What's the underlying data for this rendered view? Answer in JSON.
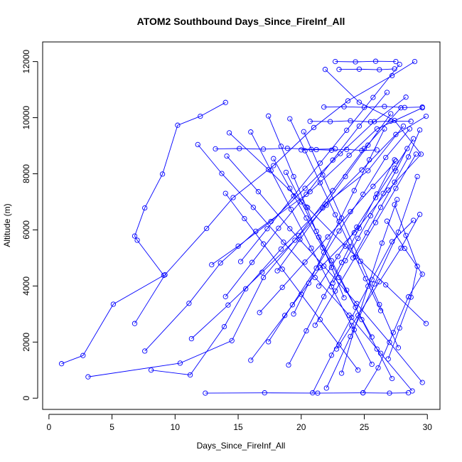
{
  "chart_data": {
    "type": "line",
    "title": "ATOM2 Southbound Days_Since_FireInf_All",
    "xlabel": "Days_Since_FireInf_All",
    "ylabel": "Altitude (m)",
    "xlim": [
      -0.5,
      31
    ],
    "ylim": [
      -400,
      12700
    ],
    "xticks": [
      0,
      5,
      10,
      15,
      20,
      25,
      30
    ],
    "yticks": [
      0,
      2000,
      4000,
      6000,
      8000,
      10000,
      12000
    ],
    "grid": false,
    "legend": "none",
    "marker": "open-circle",
    "series_color": "#0000ff",
    "series": [
      {
        "x": [
          12.4,
          17.1,
          21.3,
          24.9,
          27.0,
          28.5
        ],
        "y": [
          180,
          190,
          180,
          190,
          180,
          190
        ]
      },
      {
        "x": [
          1.0,
          2.7,
          5.1,
          9.1,
          7.0,
          6.8,
          7.6,
          9.0,
          10.2,
          12.0,
          14.0
        ],
        "y": [
          1230,
          1520,
          3350,
          4380,
          5630,
          5780,
          6780,
          7990,
          9730,
          10050,
          10540
        ]
      },
      {
        "x": [
          3.1,
          10.4,
          14.5,
          17.0,
          19.8,
          22.5,
          25.0,
          27.9
        ],
        "y": [
          760,
          1250,
          2050,
          4300,
          5800,
          7400,
          8900,
          10350
        ]
      },
      {
        "x": [
          7.6,
          11.1,
          13.6,
          16.4,
          20.7,
          23.8,
          26.0,
          29.6
        ],
        "y": [
          1680,
          3380,
          4820,
          5950,
          7360,
          8660,
          9600,
          10350
        ]
      },
      {
        "x": [
          8.1,
          11.2,
          13.9,
          15.6,
          18.4,
          21.9,
          25.3,
          28.1
        ],
        "y": [
          1000,
          830,
          2550,
          3900,
          5320,
          6920,
          8110,
          9700
        ]
      },
      {
        "x": [
          6.8,
          9.2,
          12.5,
          14.6,
          17.8,
          21.0,
          23.7,
          27.2,
          29.0
        ],
        "y": [
          2660,
          4400,
          6050,
          7150,
          8290,
          9650,
          10600,
          11500,
          12000
        ]
      },
      {
        "x": [
          16.0,
          18.7,
          21.5,
          24.2,
          26.9,
          29.5,
          27.4,
          24.6,
          21.9
        ],
        "y": [
          1350,
          2950,
          4650,
          5900,
          7420,
          8700,
          9900,
          10550,
          11720
        ]
      },
      {
        "x": [
          12.9,
          15.0,
          17.6,
          20.3,
          23.1,
          25.8,
          28.3
        ],
        "y": [
          4760,
          5420,
          6300,
          7480,
          8720,
          9860,
          10730
        ]
      },
      {
        "x": [
          11.3,
          14.2,
          16.9,
          19.5,
          22.0,
          24.8,
          27.5,
          29.9
        ],
        "y": [
          2120,
          3320,
          4490,
          5630,
          6880,
          8140,
          9400,
          10050
        ]
      },
      {
        "x": [
          28.8,
          26.3,
          23.8,
          21.1,
          18.6,
          16.2,
          13.7,
          11.8
        ],
        "y": [
          260,
          1600,
          2960,
          4300,
          5560,
          6800,
          8010,
          9040
        ]
      },
      {
        "x": [
          29.6,
          27.0,
          24.4,
          21.8,
          19.1,
          16.6,
          14.1
        ],
        "y": [
          560,
          1990,
          3370,
          4710,
          6040,
          7360,
          8630
        ]
      },
      {
        "x": [
          29.9,
          26.7,
          23.5,
          20.5,
          17.4,
          14.3
        ],
        "y": [
          2660,
          4040,
          5420,
          6790,
          8150,
          9460
        ]
      },
      {
        "x": [
          22.0,
          23.9,
          25.8,
          27.7,
          29.2
        ],
        "y": [
          360,
          2200,
          4070,
          5920,
          7900
        ]
      },
      {
        "x": [
          24.9,
          26.1,
          27.3,
          28.5,
          29.6,
          28.2,
          26.8
        ],
        "y": [
          190,
          1080,
          2340,
          3610,
          4420,
          5340,
          6310
        ]
      },
      {
        "x": [
          20.9,
          22.4,
          24.0,
          25.6,
          27.2,
          28.9
        ],
        "y": [
          190,
          1530,
          2880,
          4230,
          5580,
          6340
        ]
      },
      {
        "x": [
          23.2,
          24.2,
          25.3,
          26.4,
          27.6
        ],
        "y": [
          890,
          2440,
          3990,
          5530,
          7080
        ]
      },
      {
        "x": [
          17.4,
          19.3,
          21.2,
          23.0,
          24.9,
          26.7,
          28.6
        ],
        "y": [
          2010,
          3330,
          4640,
          5960,
          7270,
          8580,
          9600
        ]
      },
      {
        "x": [
          14.0,
          16.1,
          18.2,
          20.4,
          22.5,
          24.6,
          26.8
        ],
        "y": [
          3620,
          4840,
          6060,
          7270,
          8490,
          9700,
          10900
        ]
      },
      {
        "x": [
          19.4,
          20.6,
          21.8,
          23.0,
          24.2,
          25.4,
          26.6
        ],
        "y": [
          3000,
          4100,
          5200,
          6300,
          7400,
          8500,
          9600
        ]
      },
      {
        "x": [
          26.3,
          25.1,
          23.9,
          22.7,
          21.5,
          20.3,
          19.1
        ],
        "y": [
          3120,
          4260,
          5400,
          6540,
          7680,
          8820,
          9960
        ]
      },
      {
        "x": [
          27.7,
          26.2,
          24.7,
          23.2,
          21.7,
          20.2
        ],
        "y": [
          1800,
          3340,
          4880,
          6420,
          7960,
          9500
        ]
      },
      {
        "x": [
          21.1,
          22.7,
          24.3,
          25.9,
          27.5,
          29.1
        ],
        "y": [
          2600,
          3820,
          5040,
          6260,
          7480,
          8700
        ]
      },
      {
        "x": [
          25.6,
          24.0,
          22.4,
          20.8,
          19.2,
          17.6,
          16.0
        ],
        "y": [
          1210,
          2590,
          3970,
          5350,
          6730,
          8110,
          9490
        ]
      },
      {
        "x": [
          22.5,
          23.5,
          24.5,
          25.5,
          26.5,
          27.5,
          28.4
        ],
        "y": [
          4100,
          4900,
          5700,
          6500,
          7300,
          8100,
          8900
        ]
      },
      {
        "x": [
          18.1,
          19.9,
          21.7,
          23.5,
          25.3,
          27.1
        ],
        "y": [
          4540,
          5660,
          6780,
          7900,
          9020,
          10140
        ]
      },
      {
        "x": [
          15.2,
          17.3,
          19.4,
          21.5,
          23.6,
          25.7,
          27.8
        ],
        "y": [
          4870,
          6040,
          7210,
          8380,
          9550,
          10720,
          11900
        ]
      },
      {
        "x": [
          20.0,
          21.2,
          22.4,
          23.6,
          24.8,
          26.0
        ],
        "y": [
          8850,
          8860,
          8840,
          8870,
          8830,
          8850
        ]
      },
      {
        "x": [
          13.2,
          15.1,
          17.0,
          18.9,
          20.8,
          22.7
        ],
        "y": [
          8890,
          8900,
          8880,
          8910,
          8870,
          8890
        ]
      },
      {
        "x": [
          20.7,
          22.3,
          23.9,
          25.5,
          27.1,
          28.7
        ],
        "y": [
          9870,
          9860,
          9890,
          9850,
          9880,
          9870
        ]
      },
      {
        "x": [
          21.8,
          23.4,
          25.0,
          26.6,
          28.2,
          29.6
        ],
        "y": [
          10380,
          10390,
          10370,
          10400,
          10360,
          10380
        ]
      },
      {
        "x": [
          22.7,
          24.3,
          25.9,
          27.5
        ],
        "y": [
          12000,
          11990,
          12010,
          12000
        ]
      },
      {
        "x": [
          23.0,
          24.6,
          26.2,
          27.4
        ],
        "y": [
          11720,
          11730,
          11710,
          11740
        ]
      },
      {
        "x": [
          25.6,
          24.3,
          23.0,
          21.7,
          20.4,
          19.1,
          17.8
        ],
        "y": [
          2180,
          3240,
          4300,
          5360,
          6420,
          7480,
          8540
        ]
      },
      {
        "x": [
          24.1,
          25.2,
          26.3,
          27.4,
          28.5,
          29.4
        ],
        "y": [
          5000,
          5900,
          6800,
          7700,
          8600,
          9560
        ]
      },
      {
        "x": [
          19.0,
          20.4,
          21.8,
          23.2,
          24.6,
          26.0,
          27.4
        ],
        "y": [
          1180,
          2400,
          3620,
          4840,
          6060,
          7280,
          8500
        ]
      },
      {
        "x": [
          23.4,
          22.4,
          21.4,
          20.4,
          19.4,
          18.4,
          17.4
        ],
        "y": [
          3580,
          4660,
          5740,
          6820,
          7900,
          8980,
          10060
        ]
      },
      {
        "x": [
          26.9,
          27.8,
          28.7,
          29.2,
          28.3,
          27.4
        ],
        "y": [
          1400,
          2500,
          3600,
          4700,
          5800,
          6900
        ]
      },
      {
        "x": [
          16.7,
          18.5,
          20.3,
          22.1,
          23.9,
          25.7,
          27.5
        ],
        "y": [
          3050,
          3950,
          4850,
          5750,
          6650,
          7550,
          8450
        ]
      },
      {
        "x": [
          24.5,
          23.0,
          21.5,
          20.0,
          18.5,
          17.0,
          15.5,
          14.0
        ],
        "y": [
          1000,
          1900,
          2800,
          3700,
          4600,
          5500,
          6400,
          7300
        ]
      },
      {
        "x": [
          27.2,
          26.0,
          24.8,
          23.6,
          22.4,
          21.2,
          20.0,
          18.8
        ],
        "y": [
          700,
          1750,
          2800,
          3850,
          4900,
          5950,
          7000,
          8050
        ]
      },
      {
        "x": [
          22.8,
          24.5,
          26.2,
          27.9,
          29.4
        ],
        "y": [
          1750,
          2950,
          4150,
          5350,
          6550
        ]
      },
      {
        "x": [
          21.4,
          22.9,
          24.4,
          25.9,
          27.4,
          28.9
        ],
        "y": [
          4000,
          5050,
          6100,
          7150,
          8200,
          9250
        ]
      }
    ]
  }
}
